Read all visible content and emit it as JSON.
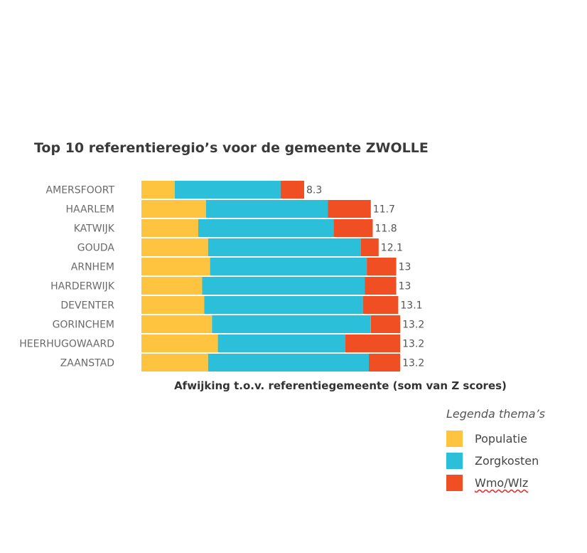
{
  "chart_data": {
    "type": "bar",
    "orientation": "horizontal",
    "stacked": true,
    "title": "Top 10 referentieregio’s voor de gemeente ZWOLLE",
    "xlabel": "Afwijking t.o.v. referentiegemeente (som van Z scores)",
    "ylabel": "",
    "categories": [
      "AMERSFOORT",
      "HAARLEM",
      "KATWIJK",
      "GOUDA",
      "ARNHEM",
      "HARDERWIJK",
      "DEVENTER",
      "GORINCHEM",
      "HEERHUGOWAARD",
      "ZAANSTAD"
    ],
    "series": [
      {
        "name": "Populatie",
        "color": "#fec43f",
        "values": [
          1.7,
          3.3,
          2.9,
          3.4,
          3.5,
          3.1,
          3.2,
          3.6,
          3.9,
          3.4
        ]
      },
      {
        "name": "Zorgkosten",
        "color": "#2bbfd9",
        "values": [
          5.4,
          6.2,
          6.9,
          7.8,
          8.0,
          8.3,
          8.1,
          8.1,
          6.5,
          8.2
        ]
      },
      {
        "name": "Wmo/Wlz",
        "color": "#ef4f23",
        "values": [
          1.2,
          2.2,
          2.0,
          0.9,
          1.5,
          1.6,
          1.8,
          1.5,
          2.8,
          1.6
        ]
      }
    ],
    "totals": [
      "8.3",
      "11.7",
      "11.8",
      "12.1",
      "13",
      "13",
      "13.1",
      "13.2",
      "13.2",
      "13.2"
    ],
    "xlim": [
      0,
      20.3
    ],
    "grid": false,
    "legend": "bottom-right"
  },
  "legend": {
    "title": "Legenda thema’s",
    "items": [
      {
        "label": "Populatie",
        "color": "#fec43f"
      },
      {
        "label": "Zorgkosten",
        "color": "#2bbfd9"
      },
      {
        "label": "Wmo/Wlz",
        "color": "#ef4f23"
      }
    ]
  }
}
